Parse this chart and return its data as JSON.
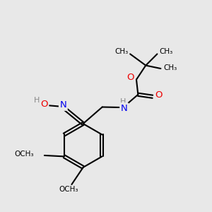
{
  "background_color": "#e8e8e8",
  "bond_color": "#000000",
  "N_color": "#0000ee",
  "O_color": "#ee0000",
  "H_color": "#888888",
  "figsize": [
    3.0,
    3.0
  ],
  "dpi": 100,
  "xlim": [
    0,
    10
  ],
  "ylim": [
    0,
    10
  ]
}
